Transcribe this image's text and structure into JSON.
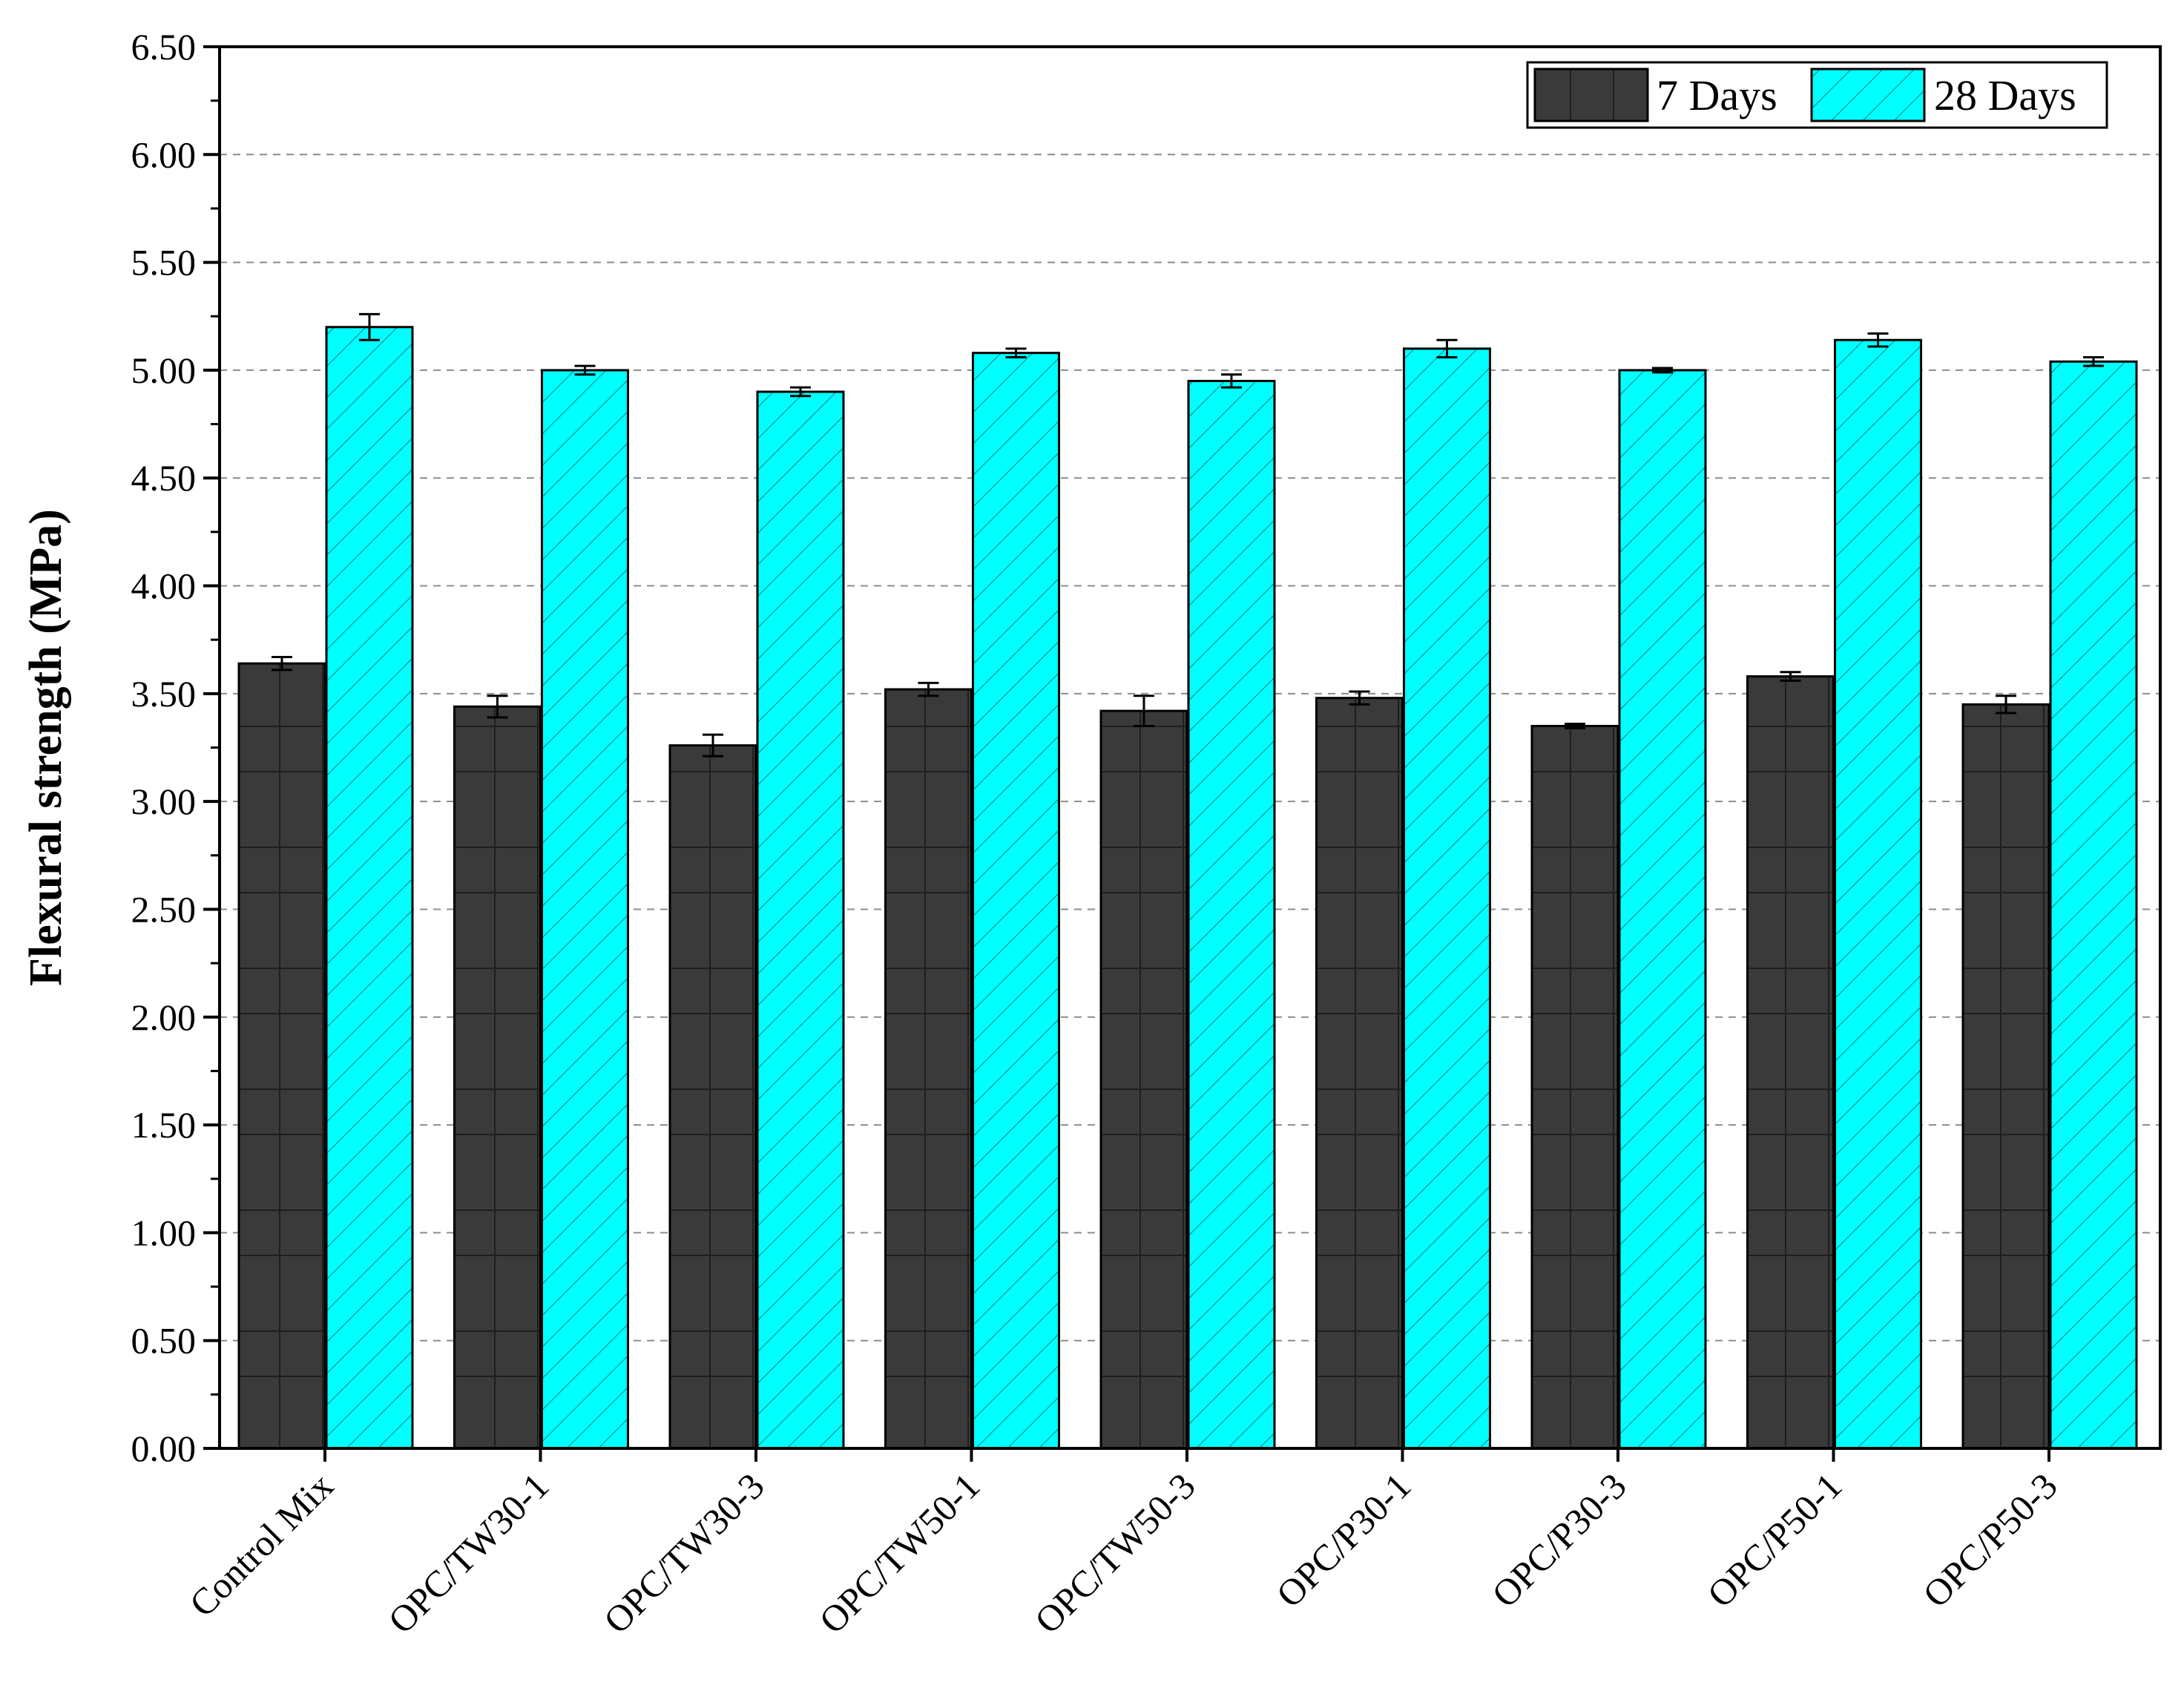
{
  "chart_data": {
    "type": "bar",
    "ylabel": "Flexural strength (MPa)",
    "xlabel": "",
    "ylim": [
      0,
      6.5
    ],
    "yticks": [
      "0.00",
      "0.50",
      "1.00",
      "1.50",
      "2.00",
      "2.50",
      "3.00",
      "3.50",
      "4.00",
      "4.50",
      "5.00",
      "5.50",
      "6.00",
      "6.50"
    ],
    "grid": "horizontal dashed",
    "legend_position": "top-right",
    "categories": [
      "Control Mix",
      "OPC/TW30-1",
      "OPC/TW30-3",
      "OPC/TW50-1",
      "OPC/TW50-3",
      "OPC/P30-1",
      "OPC/P30-3",
      "OPC/P50-1",
      "OPC/P50-3"
    ],
    "series": [
      {
        "name": "7 Days",
        "color": "#3a3a3a",
        "pattern": "grid",
        "values": [
          3.64,
          3.44,
          3.26,
          3.52,
          3.42,
          3.48,
          3.35,
          3.58,
          3.45
        ],
        "errors": [
          0.03,
          0.05,
          0.05,
          0.03,
          0.07,
          0.03,
          0.01,
          0.02,
          0.04
        ]
      },
      {
        "name": "28 Days",
        "color": "#00ffff",
        "pattern": "diagonal-hatch",
        "values": [
          5.2,
          5.0,
          4.9,
          5.08,
          4.95,
          5.1,
          5.0,
          5.14,
          5.04
        ],
        "errors": [
          0.06,
          0.02,
          0.02,
          0.02,
          0.03,
          0.04,
          0.01,
          0.03,
          0.02
        ]
      }
    ]
  }
}
